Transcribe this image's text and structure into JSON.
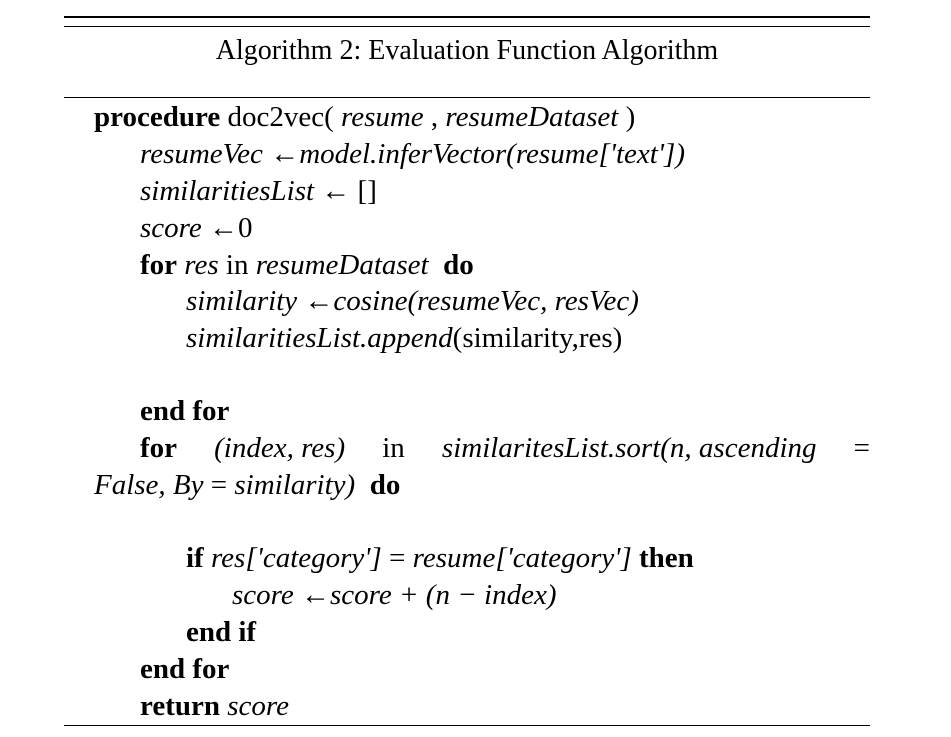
{
  "algorithm": {
    "title": "Algorithm 2: Evaluation Function Algorithm",
    "lines": {
      "l1_kw": "procedure",
      "l1_name": " doc2vec( ",
      "l1_arg1": "resume",
      "l1_sep": " , ",
      "l1_arg2": "resumeDataset",
      "l1_close": " )",
      "l2_var": "resumeVec",
      "l2_arrow": " ←",
      "l2_expr": "model.inferVector(resume['text'])",
      "l3_var": "similaritiesList",
      "l3_arrow": " ← ",
      "l3_val": "[]",
      "l4_var": "score",
      "l4_arrow": " ←",
      "l4_val": "0",
      "l5_kw1": "for",
      "l5_var": "res",
      "l5_in": " in ",
      "l5_set": "resumeDataset",
      "l5_kw2": "do",
      "l6_var": "similarity",
      "l6_arrow": " ←",
      "l6_expr": "cosine(resumeVec, resVec)",
      "l7_expr": "similaritiesList.append",
      "l7_args": "(similarity,res)",
      "l8_kw": "end for",
      "l9_kw": "for",
      "l9_p1": "(index, res)",
      "l9_in": "in",
      "l9_p2": "similaritesList.sort(n, ascending",
      "l9_eq": "=",
      "l10_p1": "False, By",
      "l10_eq": " = ",
      "l10_p2": "similarity)",
      "l10_kw": "do",
      "l11_kw1": "if",
      "l11_p1": "res['category']",
      "l11_eq": " = ",
      "l11_p2": "resume['category']",
      "l11_kw2": "then",
      "l12_var": "score",
      "l12_arrow": " ←",
      "l12_expr": "score + (n − index)",
      "l13_kw": "end if",
      "l14_kw": "end for",
      "l15_kw": "return",
      "l15_var": "score"
    }
  }
}
